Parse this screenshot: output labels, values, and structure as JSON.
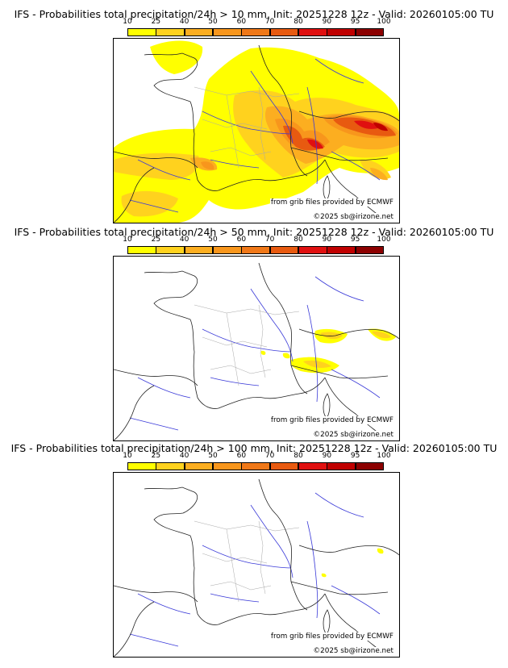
{
  "palette": {
    "c10": "#ffff00",
    "c25": "#ffd21e",
    "c40": "#fcae20",
    "c50": "#f8961c",
    "c60": "#f07818",
    "c70": "#e85a10",
    "c80": "#e01010",
    "c90": "#c00000",
    "c95": "#8c0000",
    "c100": "#5a0000",
    "border": "#222222",
    "river": "#3a3ad8",
    "region": "#a8a8a8"
  },
  "colorbar_ticks": [
    "10",
    "25",
    "40",
    "50",
    "60",
    "70",
    "80",
    "90",
    "95",
    "100"
  ],
  "panels": [
    {
      "title": "IFS - Probabilities total precipitation/24h > 10 mm, Init: 20251228 12z - Valid: 20260105:00 TU",
      "credit_source": "from grib files provided by ECMWF",
      "credit_copyright": "©2025 sb@irizone.net"
    },
    {
      "title": "IFS - Probabilities total precipitation/24h > 50 mm, Init: 20251228 12z - Valid: 20260105:00 TU",
      "credit_source": "from grib files provided by ECMWF",
      "credit_copyright": "©2025 sb@irizone.net"
    },
    {
      "title": "IFS - Probabilities total precipitation/24h > 100 mm, Init: 20251228 12z - Valid: 20260105:00 TU",
      "credit_source": "from grib files provided by ECMWF",
      "credit_copyright": "©2025 sb@irizone.net"
    }
  ]
}
